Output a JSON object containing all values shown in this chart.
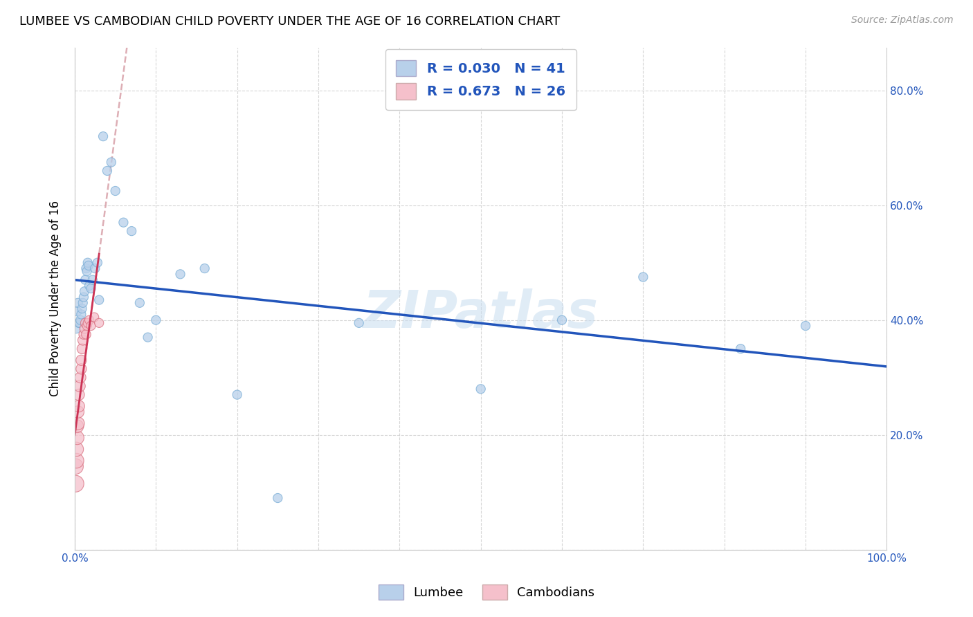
{
  "title": "LUMBEE VS CAMBODIAN CHILD POVERTY UNDER THE AGE OF 16 CORRELATION CHART",
  "source": "Source: ZipAtlas.com",
  "ylabel": "Child Poverty Under the Age of 16",
  "watermark": "ZIPatlas",
  "xlim": [
    0.0,
    1.0
  ],
  "ylim": [
    0.0,
    0.875
  ],
  "xticks": [
    0.0,
    0.1,
    0.2,
    0.3,
    0.4,
    0.5,
    0.6,
    0.7,
    0.8,
    0.9,
    1.0
  ],
  "xticklabels": [
    "0.0%",
    "",
    "",
    "",
    "",
    "",
    "",
    "",
    "",
    "",
    "100.0%"
  ],
  "yticks": [
    0.0,
    0.2,
    0.4,
    0.6,
    0.8
  ],
  "yticklabels": [
    "",
    "20.0%",
    "40.0%",
    "60.0%",
    "80.0%"
  ],
  "lumbee_R": 0.03,
  "lumbee_N": 41,
  "cambodian_R": 0.673,
  "cambodian_N": 26,
  "lumbee_color": "#b8d0ea",
  "lumbee_edge": "#7aaed6",
  "cambodian_color": "#f5c0cb",
  "cambodian_edge": "#d97080",
  "trend_lumbee_color": "#2255bb",
  "trend_cambodian_color": "#cc3355",
  "trend_cambodian_dash_color": "#d8a0a8",
  "grid_color": "#cccccc",
  "lumbee_x": [
    0.002,
    0.003,
    0.004,
    0.005,
    0.006,
    0.007,
    0.008,
    0.009,
    0.01,
    0.011,
    0.012,
    0.013,
    0.014,
    0.015,
    0.016,
    0.017,
    0.018,
    0.02,
    0.022,
    0.025,
    0.028,
    0.03,
    0.035,
    0.04,
    0.045,
    0.05,
    0.06,
    0.07,
    0.08,
    0.09,
    0.1,
    0.13,
    0.16,
    0.2,
    0.25,
    0.35,
    0.5,
    0.6,
    0.7,
    0.82,
    0.9
  ],
  "lumbee_y": [
    0.385,
    0.415,
    0.43,
    0.395,
    0.395,
    0.4,
    0.41,
    0.42,
    0.43,
    0.44,
    0.45,
    0.47,
    0.49,
    0.485,
    0.5,
    0.495,
    0.46,
    0.455,
    0.47,
    0.49,
    0.5,
    0.435,
    0.72,
    0.66,
    0.675,
    0.625,
    0.57,
    0.555,
    0.43,
    0.37,
    0.4,
    0.48,
    0.49,
    0.27,
    0.09,
    0.395,
    0.28,
    0.4,
    0.475,
    0.35,
    0.39
  ],
  "lumbee_sizes": [
    90,
    90,
    90,
    90,
    90,
    90,
    90,
    90,
    90,
    90,
    90,
    90,
    90,
    90,
    90,
    90,
    90,
    90,
    90,
    90,
    90,
    90,
    90,
    90,
    90,
    90,
    90,
    90,
    90,
    90,
    90,
    90,
    90,
    90,
    90,
    90,
    90,
    90,
    90,
    90,
    90
  ],
  "cambodian_x": [
    0.001,
    0.001,
    0.002,
    0.002,
    0.003,
    0.003,
    0.004,
    0.004,
    0.005,
    0.005,
    0.006,
    0.007,
    0.008,
    0.008,
    0.009,
    0.01,
    0.011,
    0.012,
    0.013,
    0.014,
    0.015,
    0.016,
    0.018,
    0.02,
    0.024,
    0.03
  ],
  "cambodian_y": [
    0.115,
    0.145,
    0.155,
    0.175,
    0.195,
    0.215,
    0.22,
    0.24,
    0.25,
    0.27,
    0.285,
    0.3,
    0.315,
    0.33,
    0.35,
    0.365,
    0.375,
    0.385,
    0.395,
    0.375,
    0.39,
    0.395,
    0.4,
    0.39,
    0.405,
    0.395
  ],
  "cambodian_sizes": [
    300,
    260,
    240,
    220,
    200,
    180,
    180,
    160,
    150,
    140,
    140,
    130,
    120,
    120,
    110,
    110,
    100,
    100,
    95,
    95,
    90,
    90,
    90,
    90,
    90,
    90
  ]
}
